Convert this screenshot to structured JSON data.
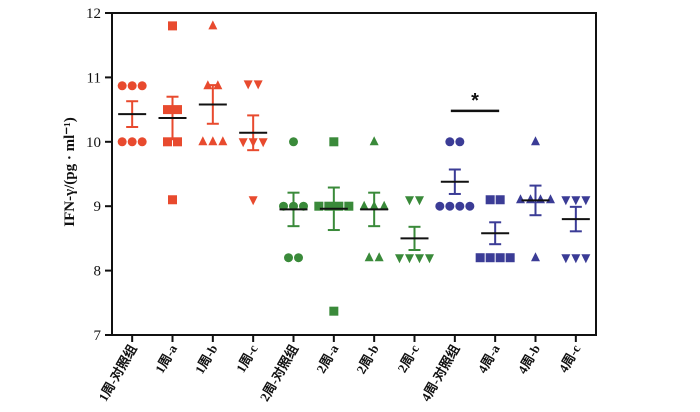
{
  "chart_data": {
    "type": "scatter",
    "title": "",
    "xlabel": "",
    "ylabel": "IFN-γ/(pg · ml⁻¹)",
    "ylim": [
      7,
      12
    ],
    "yticks": [
      7,
      8,
      9,
      10,
      11,
      12
    ],
    "categories": [
      "1周-对照组",
      "1周-a",
      "1周-b",
      "1周-c",
      "2周-对照组",
      "2周-a",
      "2周-b",
      "2周-c",
      "4周-对照组",
      "4周-a",
      "4周-b",
      "4周-c"
    ],
    "colors": {
      "week1": "#e84a2e",
      "week2": "#3a8a3a",
      "week4": "#3b3c96",
      "axis": "#111111"
    },
    "groups": [
      {
        "category": "1周-对照组",
        "marker": "circle",
        "color": "#e84a2e",
        "mean": 10.43,
        "sem": 0.2,
        "points": [
          10.87,
          10.87,
          10.87,
          10.0,
          10.0,
          10.0
        ]
      },
      {
        "category": "1周-a",
        "marker": "square",
        "color": "#e84a2e",
        "mean": 10.37,
        "sem": 0.33,
        "points": [
          11.8,
          10.5,
          10.5,
          10.0,
          10.0,
          9.1
        ]
      },
      {
        "category": "1周-b",
        "marker": "triangle-up",
        "color": "#e84a2e",
        "mean": 10.58,
        "sem": 0.3,
        "points": [
          11.8,
          10.87,
          10.87,
          10.0,
          10.0,
          10.0
        ]
      },
      {
        "category": "1周-c",
        "marker": "triangle-down",
        "color": "#e84a2e",
        "mean": 10.14,
        "sem": 0.27,
        "points": [
          10.9,
          10.9,
          10.0,
          10.0,
          10.0,
          9.1
        ]
      },
      {
        "category": "2周-对照组",
        "marker": "circle",
        "color": "#3a8a3a",
        "mean": 8.95,
        "sem": 0.26,
        "points": [
          10.0,
          9.0,
          9.0,
          9.0,
          8.2,
          8.2
        ]
      },
      {
        "category": "2周-a",
        "marker": "square",
        "color": "#3a8a3a",
        "mean": 8.96,
        "sem": 0.33,
        "points": [
          10.0,
          9.0,
          9.0,
          9.0,
          9.0,
          7.37
        ]
      },
      {
        "category": "2周-b",
        "marker": "triangle-up",
        "color": "#3a8a3a",
        "mean": 8.95,
        "sem": 0.26,
        "points": [
          10.0,
          9.0,
          9.0,
          9.0,
          8.2,
          8.2
        ]
      },
      {
        "category": "2周-c",
        "marker": "triangle-down",
        "color": "#3a8a3a",
        "mean": 8.5,
        "sem": 0.18,
        "points": [
          9.1,
          9.1,
          8.2,
          8.2,
          8.2,
          8.2
        ]
      },
      {
        "category": "4周-对照组",
        "marker": "circle",
        "color": "#3b3c96",
        "mean": 9.38,
        "sem": 0.19,
        "points": [
          10.0,
          10.0,
          9.0,
          9.0,
          9.0,
          9.0
        ]
      },
      {
        "category": "4周-a",
        "marker": "square",
        "color": "#3b3c96",
        "mean": 8.58,
        "sem": 0.17,
        "points": [
          9.1,
          9.1,
          8.2,
          8.2,
          8.2,
          8.2
        ]
      },
      {
        "category": "4周-b",
        "marker": "triangle-up",
        "color": "#3b3c96",
        "mean": 9.09,
        "sem": 0.23,
        "points": [
          10.0,
          9.1,
          9.1,
          9.1,
          9.1,
          8.2
        ]
      },
      {
        "category": "4周-c",
        "marker": "triangle-down",
        "color": "#3b3c96",
        "mean": 8.8,
        "sem": 0.19,
        "points": [
          9.1,
          9.1,
          9.1,
          8.2,
          8.2,
          8.2
        ]
      }
    ],
    "annotations": [
      {
        "text": "*",
        "from_category": "4周-对照组",
        "to_category": "4周-a",
        "y": 10.48
      }
    ]
  }
}
